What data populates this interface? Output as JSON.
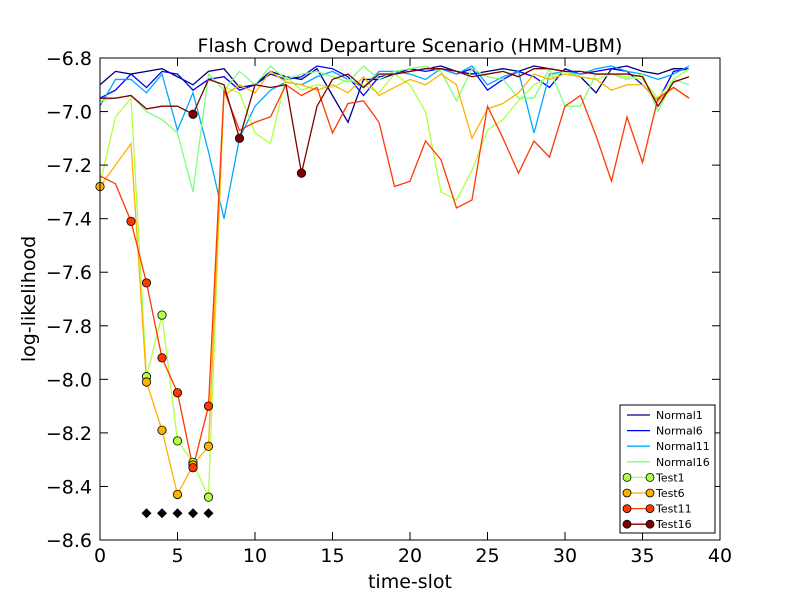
{
  "chart_data": {
    "type": "line",
    "title": "Flash Crowd Departure Scenario (HMM-UBM)",
    "xlabel": "time-slot",
    "ylabel": "log-likelihood",
    "xlim": [
      0,
      40
    ],
    "ylim": [
      -8.6,
      -6.8
    ],
    "xticks": [
      0,
      5,
      10,
      15,
      20,
      25,
      30,
      35,
      40
    ],
    "xtick_labels": [
      "0",
      "5",
      "10",
      "15",
      "20",
      "25",
      "30",
      "35",
      "40"
    ],
    "yticks": [
      -8.6,
      -8.4,
      -8.2,
      -8.0,
      -7.8,
      -7.6,
      -7.4,
      -7.2,
      -7.0,
      -6.8
    ],
    "ytick_labels": [
      "−8.6",
      "−8.4",
      "−8.2",
      "−8.0",
      "−7.8",
      "−7.6",
      "−7.4",
      "−7.2",
      "−7.0",
      "−6.8"
    ],
    "grid": false,
    "legend_position": "lower-right",
    "series": [
      {
        "name": "Normal1",
        "color": "#00007f",
        "marker": "none",
        "x": [
          0,
          1,
          2,
          3,
          4,
          5,
          6,
          7,
          8,
          9,
          10,
          11,
          12,
          13,
          14,
          15,
          16,
          17,
          18,
          19,
          20,
          21,
          22,
          23,
          24,
          25,
          26,
          27,
          28,
          29,
          30,
          31,
          32,
          33,
          34,
          35,
          36,
          37,
          38
        ],
        "y": [
          -6.9,
          -6.85,
          -6.86,
          -6.85,
          -6.84,
          -6.87,
          -6.9,
          -6.85,
          -6.84,
          -6.91,
          -6.9,
          -6.85,
          -6.87,
          -6.88,
          -6.84,
          -6.94,
          -7.04,
          -6.88,
          -6.88,
          -6.86,
          -6.85,
          -6.84,
          -6.83,
          -6.85,
          -6.86,
          -6.85,
          -6.84,
          -6.85,
          -6.83,
          -6.84,
          -6.85,
          -6.87,
          -6.93,
          -6.84,
          -6.83,
          -6.85,
          -6.86,
          -6.84,
          -6.84
        ]
      },
      {
        "name": "Normal6",
        "color": "#0000ff",
        "marker": "none",
        "x": [
          0,
          1,
          2,
          3,
          4,
          5,
          6,
          7,
          8,
          9,
          10,
          11,
          12,
          13,
          14,
          15,
          16,
          17,
          18,
          19,
          20,
          21,
          22,
          23,
          24,
          25,
          26,
          27,
          28,
          29,
          30,
          31,
          32,
          33,
          34,
          35,
          36,
          37,
          38
        ],
        "y": [
          -6.95,
          -6.92,
          -6.86,
          -6.91,
          -6.85,
          -6.86,
          -6.92,
          -6.88,
          -6.87,
          -6.92,
          -6.9,
          -6.86,
          -6.88,
          -6.87,
          -6.83,
          -6.84,
          -6.87,
          -6.94,
          -6.87,
          -6.86,
          -6.84,
          -6.85,
          -6.84,
          -6.86,
          -6.84,
          -6.92,
          -6.88,
          -6.85,
          -6.87,
          -6.91,
          -6.84,
          -6.86,
          -6.85,
          -6.84,
          -6.85,
          -6.9,
          -6.96,
          -6.85,
          -6.84
        ]
      },
      {
        "name": "Normal11",
        "color": "#00a8ff",
        "marker": "none",
        "x": [
          0,
          1,
          2,
          3,
          4,
          5,
          6,
          7,
          8,
          9,
          10,
          11,
          12,
          13,
          14,
          15,
          16,
          17,
          18,
          19,
          20,
          21,
          22,
          23,
          24,
          25,
          26,
          27,
          28,
          29,
          30,
          31,
          32,
          33,
          34,
          35,
          36,
          37,
          38
        ],
        "y": [
          -6.98,
          -6.88,
          -6.88,
          -6.93,
          -6.86,
          -7.07,
          -6.93,
          -7.15,
          -7.4,
          -7.1,
          -6.98,
          -6.92,
          -6.89,
          -6.9,
          -6.87,
          -6.85,
          -6.88,
          -6.91,
          -6.85,
          -6.85,
          -6.86,
          -6.88,
          -6.84,
          -6.86,
          -6.83,
          -6.9,
          -6.87,
          -6.85,
          -7.08,
          -6.86,
          -6.85,
          -6.86,
          -6.84,
          -6.83,
          -6.85,
          -6.86,
          -6.88,
          -6.86,
          -6.83
        ]
      },
      {
        "name": "Normal16",
        "color": "#7dff7a",
        "marker": "none",
        "x": [
          0,
          1,
          2,
          3,
          4,
          5,
          6,
          7,
          8,
          9,
          10,
          11,
          12,
          13,
          14,
          15,
          16,
          17,
          18,
          19,
          20,
          21,
          22,
          23,
          24,
          25,
          26,
          27,
          28,
          29,
          30,
          31,
          32,
          33,
          34,
          35,
          36,
          37,
          38
        ],
        "y": [
          -6.96,
          -6.95,
          -6.94,
          -7.0,
          -7.03,
          -7.08,
          -7.3,
          -6.86,
          -6.92,
          -6.85,
          -6.9,
          -6.83,
          -6.88,
          -6.86,
          -6.85,
          -6.87,
          -6.89,
          -6.83,
          -6.88,
          -6.85,
          -6.84,
          -6.83,
          -6.85,
          -6.96,
          -6.84,
          -6.87,
          -6.88,
          -6.95,
          -6.95,
          -6.84,
          -6.98,
          -6.98,
          -6.86,
          -6.86,
          -6.88,
          -6.86,
          -7.0,
          -6.88,
          -6.9
        ]
      },
      {
        "name": "Test1",
        "color": "#b2ff45",
        "marker": "circle",
        "x": [
          0,
          1,
          2,
          3,
          4,
          5,
          6,
          7,
          8,
          9,
          10,
          11,
          12,
          13,
          14,
          15,
          16,
          17,
          18,
          19,
          20,
          21,
          22,
          23,
          24,
          25,
          26,
          27,
          28,
          29,
          30,
          31,
          32,
          33,
          34,
          35,
          36,
          37,
          38
        ],
        "y": [
          -7.27,
          -7.02,
          -6.95,
          -7.99,
          -7.76,
          -8.23,
          -8.31,
          -8.44,
          -6.91,
          -6.93,
          -7.08,
          -7.12,
          -6.87,
          -6.92,
          -6.9,
          -6.91,
          -6.88,
          -6.9,
          -6.93,
          -6.86,
          -6.9,
          -7.0,
          -7.3,
          -7.33,
          -7.22,
          -7.07,
          -7.03,
          -6.96,
          -6.9,
          -6.87,
          -6.85,
          -6.87,
          -6.88,
          -6.86,
          -6.87,
          -6.88,
          -6.95,
          -6.88,
          -6.84
        ]
      },
      {
        "name": "Test6",
        "color": "#ffb200",
        "marker": "circle",
        "x": [
          0,
          1,
          2,
          3,
          4,
          5,
          6,
          7,
          8,
          9,
          10,
          11,
          12,
          13,
          14,
          15,
          16,
          17,
          18,
          19,
          20,
          21,
          22,
          23,
          24,
          25,
          26,
          27,
          28,
          29,
          30,
          31,
          32,
          33,
          34,
          35,
          36,
          37,
          38
        ],
        "y": [
          -7.28,
          -7.2,
          -7.12,
          -8.01,
          -8.19,
          -8.43,
          -8.32,
          -8.25,
          -6.94,
          -6.9,
          -6.93,
          -6.85,
          -6.89,
          -6.9,
          -6.92,
          -6.9,
          -6.93,
          -6.87,
          -6.94,
          -6.91,
          -6.88,
          -6.9,
          -6.86,
          -6.9,
          -7.1,
          -6.99,
          -6.97,
          -6.93,
          -6.86,
          -6.88,
          -6.86,
          -6.87,
          -6.88,
          -6.92,
          -6.9,
          -6.9,
          -6.96,
          -6.91,
          -6.95
        ]
      },
      {
        "name": "Test11",
        "color": "#ff3800",
        "marker": "circle",
        "x": [
          0,
          1,
          2,
          3,
          4,
          5,
          6,
          7,
          8,
          9,
          10,
          11,
          12,
          13,
          14,
          15,
          16,
          17,
          18,
          19,
          20,
          21,
          22,
          23,
          24,
          25,
          26,
          27,
          28,
          29,
          30,
          31,
          32,
          33,
          34,
          35,
          36,
          37,
          38
        ],
        "y": [
          -7.24,
          -7.27,
          -7.41,
          -7.64,
          -7.92,
          -8.05,
          -8.33,
          -8.1,
          -6.92,
          -7.07,
          -7.04,
          -7.02,
          -6.9,
          -6.94,
          -6.91,
          -7.08,
          -6.97,
          -6.96,
          -7.04,
          -7.28,
          -7.26,
          -7.11,
          -7.18,
          -7.36,
          -7.33,
          -6.98,
          -7.1,
          -7.23,
          -7.11,
          -7.17,
          -6.98,
          -6.94,
          -7.09,
          -7.26,
          -7.02,
          -7.19,
          -6.95,
          -6.91,
          -6.95
        ]
      },
      {
        "name": "Test16",
        "color": "#7f0000",
        "marker": "circle",
        "x": [
          0,
          1,
          2,
          3,
          4,
          5,
          6,
          7,
          8,
          9,
          10,
          11,
          12,
          13,
          14,
          15,
          16,
          17,
          18,
          19,
          20,
          21,
          22,
          23,
          24,
          25,
          26,
          27,
          28,
          29,
          30,
          31,
          32,
          33,
          34,
          35,
          36,
          37,
          38
        ],
        "y": [
          -6.95,
          -6.95,
          -6.94,
          -6.99,
          -6.98,
          -6.98,
          -7.01,
          -6.88,
          -6.9,
          -7.1,
          -6.9,
          -6.91,
          -6.9,
          -7.23,
          -6.98,
          -6.88,
          -6.86,
          -6.91,
          -6.86,
          -6.86,
          -6.85,
          -6.84,
          -6.84,
          -6.85,
          -6.87,
          -6.86,
          -6.85,
          -6.87,
          -6.84,
          -6.84,
          -6.85,
          -6.85,
          -6.86,
          -6.86,
          -6.86,
          -6.87,
          -6.98,
          -6.89,
          -6.87
        ]
      }
    ],
    "circle_markers": {
      "Test1": [
        3,
        4,
        5,
        6,
        7
      ],
      "Test6": [
        0,
        3,
        4,
        5,
        6,
        7
      ],
      "Test11": [
        2,
        3,
        4,
        5,
        6,
        7
      ],
      "Test16": [
        6,
        9,
        13
      ]
    },
    "diamond_markers": {
      "color": "#000000",
      "x": [
        3,
        4,
        5,
        6,
        7
      ],
      "y": [
        -8.5,
        -8.5,
        -8.5,
        -8.5,
        -8.5
      ]
    }
  }
}
